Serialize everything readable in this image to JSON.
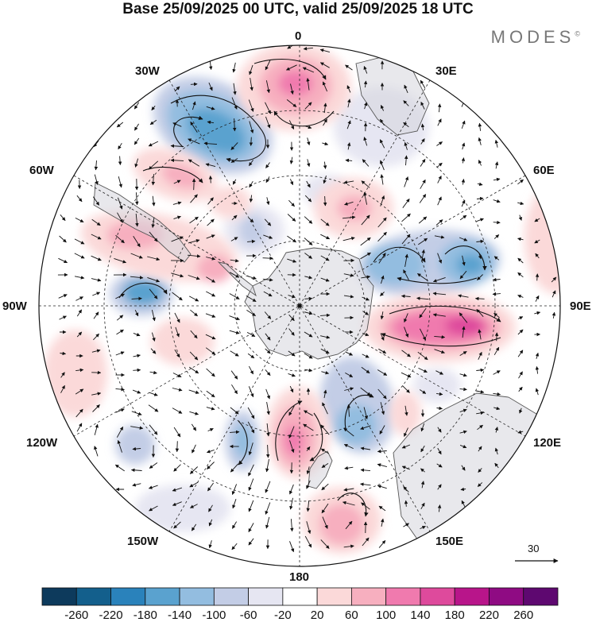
{
  "title": "Base 25/09/2025 00 UTC, valid 25/09/2025 18 UTC",
  "brand": "MODES",
  "brand_mark": "©",
  "longitude_labels": {
    "n": "0",
    "ne": "30E",
    "e60": "60E",
    "e90": "90E",
    "e120": "120E",
    "e150": "150E",
    "s": "180",
    "w150": "150W",
    "w120": "120W",
    "w90": "90W",
    "w60": "60W",
    "w30": "30W"
  },
  "vector_scale": {
    "label": "30"
  },
  "colorbar": {
    "ticks": [
      "-260",
      "-220",
      "-180",
      "-140",
      "-100",
      "-60",
      "-20",
      "20",
      "60",
      "100",
      "140",
      "180",
      "220",
      "260"
    ],
    "colors": [
      "#0d3a5c",
      "#135f8c",
      "#2a82bb",
      "#5aa2cf",
      "#93bde0",
      "#c3cde6",
      "#e6e6f2",
      "#ffffff",
      "#fbd9d9",
      "#f7afbf",
      "#f07aae",
      "#de4a9c",
      "#b8158a",
      "#8f0b83",
      "#5e0870"
    ]
  },
  "colors": {
    "land": "#e3e3e3",
    "coast": "#555555",
    "grid": "#222222"
  }
}
